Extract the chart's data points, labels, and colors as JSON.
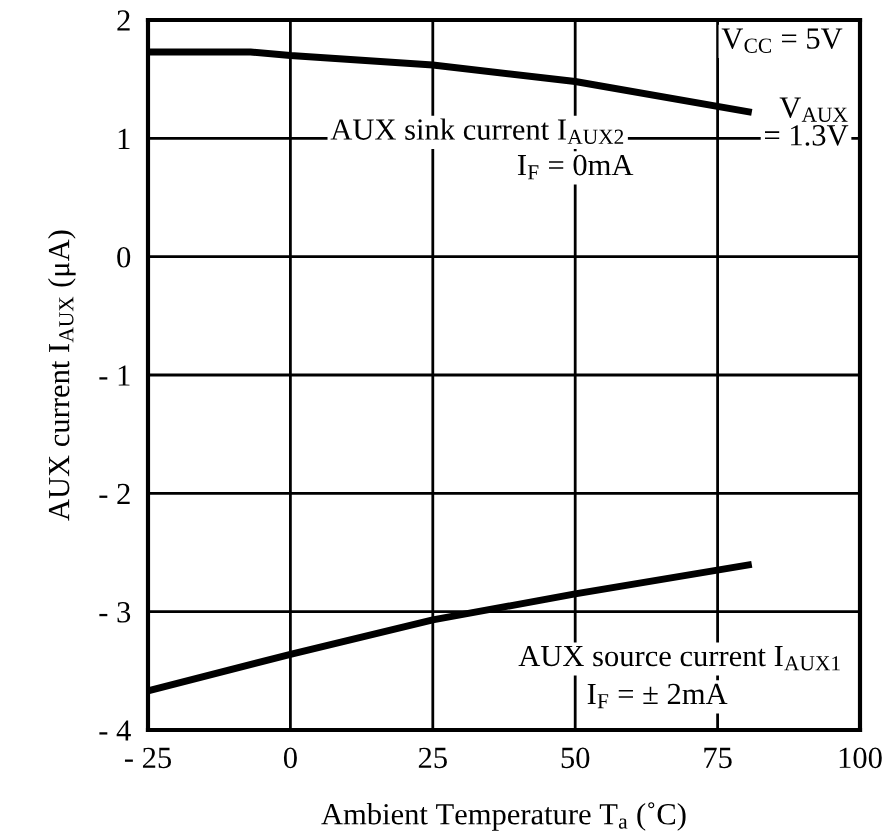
{
  "chart_data": {
    "type": "line",
    "xlabel": "Ambient Temperature T$_{a}$ (˚C)",
    "ylabel": "AUX current I$_{AUX}$ (μA)",
    "xlim": [
      -25,
      100
    ],
    "ylim": [
      -4,
      2
    ],
    "xticks": [
      {
        "value": -25,
        "label": "- 25"
      },
      0,
      25,
      50,
      75,
      100
    ],
    "yticks": [
      {
        "value": -4,
        "label": "- 4"
      },
      {
        "value": -3,
        "label": "- 3"
      },
      {
        "value": -2,
        "label": "- 2"
      },
      {
        "value": -1,
        "label": "- 1"
      },
      0,
      1,
      2
    ],
    "grid": true,
    "marker": "none",
    "line_style": "solid",
    "series": [
      {
        "color": "#000000",
        "x": [
          -25,
          -7,
          0,
          25,
          50,
          81
        ],
        "values": [
          1.73,
          1.73,
          1.7,
          1.62,
          1.48,
          1.22
        ]
      },
      {
        "color": "#000000",
        "x": [
          -25,
          0,
          25,
          50,
          81
        ],
        "values": [
          -3.67,
          -3.36,
          -3.07,
          -2.85,
          -2.6
        ]
      }
    ],
    "annotations": [
      "V$_{CC}$ = 5V",
      "V$_{AUX}$\n= 1.3V",
      "AUX sink current I$_{AUX2}$",
      "I$_{F}$ = 0mA",
      "AUX source current I$_{AUX1}$",
      "I$_{F}$ = ± 2mA"
    ]
  }
}
